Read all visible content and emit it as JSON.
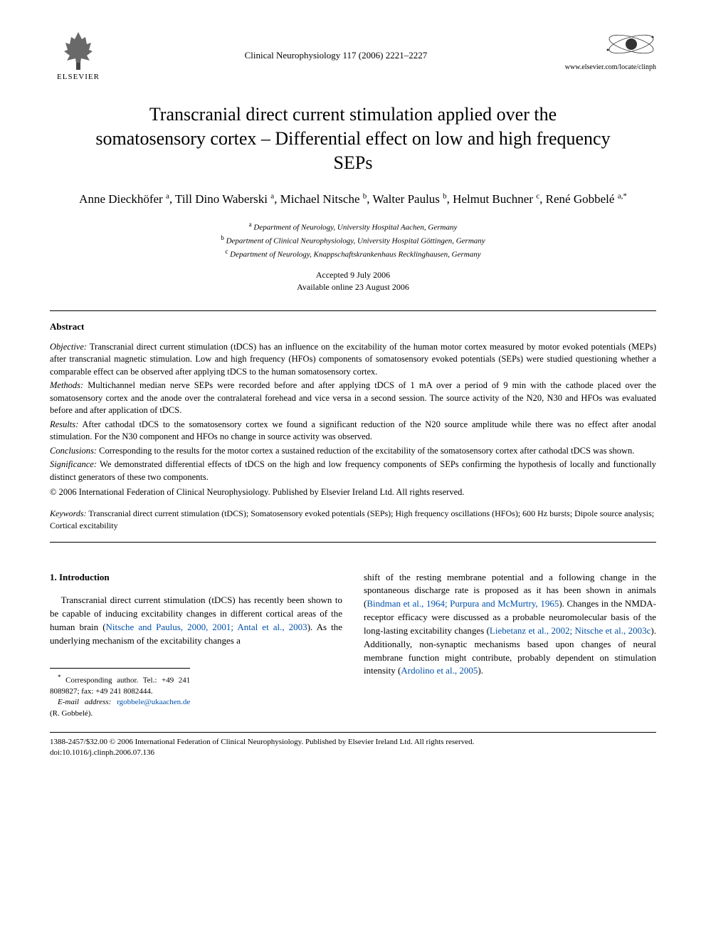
{
  "header": {
    "publisher_name": "ELSEVIER",
    "journal_citation": "Clinical Neurophysiology 117 (2006) 2221–2227",
    "site_url": "www.elsevier.com/locate/clinph"
  },
  "article": {
    "title": "Transcranial direct current stimulation applied over the somatosensory cortex – Differential effect on low and high frequency SEPs",
    "authors_html": "Anne Dieckhöfer <sup>a</sup>, Till Dino Waberski <sup>a</sup>, Michael Nitsche <sup>b</sup>, Walter Paulus <sup>b</sup>, Helmut Buchner <sup>c</sup>, René Gobbelé <sup>a,*</sup>",
    "affiliations": {
      "a": "Department of Neurology, University Hospital Aachen, Germany",
      "b": "Department of Clinical Neurophysiology, University Hospital Göttingen, Germany",
      "c": "Department of Neurology, Knappschaftskrankenhaus Recklinghausen, Germany"
    },
    "accepted": "Accepted 9 July 2006",
    "online": "Available online 23 August 2006"
  },
  "abstract": {
    "heading": "Abstract",
    "objective_label": "Objective:",
    "objective": "Transcranial direct current stimulation (tDCS) has an influence on the excitability of the human motor cortex measured by motor evoked potentials (MEPs) after transcranial magnetic stimulation. Low and high frequency (HFOs) components of somatosensory evoked potentials (SEPs) were studied questioning whether a comparable effect can be observed after applying tDCS to the human somatosensory cortex.",
    "methods_label": "Methods:",
    "methods": "Multichannel median nerve SEPs were recorded before and after applying tDCS of 1 mA over a period of 9 min with the cathode placed over the somatosensory cortex and the anode over the contralateral forehead and vice versa in a second session. The source activity of the N20, N30 and HFOs was evaluated before and after application of tDCS.",
    "results_label": "Results:",
    "results": "After cathodal tDCS to the somatosensory cortex we found a significant reduction of the N20 source amplitude while there was no effect after anodal stimulation. For the N30 component and HFOs no change in source activity was observed.",
    "conclusions_label": "Conclusions:",
    "conclusions": "Corresponding to the results for the motor cortex a sustained reduction of the excitability of the somatosensory cortex after cathodal tDCS was shown.",
    "significance_label": "Significance:",
    "significance": "We demonstrated differential effects of tDCS on the high and low frequency components of SEPs confirming the hypothesis of locally and functionally distinct generators of these two components.",
    "copyright": "© 2006 International Federation of Clinical Neurophysiology. Published by Elsevier Ireland Ltd. All rights reserved."
  },
  "keywords": {
    "label": "Keywords:",
    "text": "Transcranial direct current stimulation (tDCS); Somatosensory evoked potentials (SEPs); High frequency oscillations (HFOs); 600 Hz bursts; Dipole source analysis; Cortical excitability"
  },
  "introduction": {
    "heading": "1. Introduction",
    "col1_pre": "Transcranial direct current stimulation (tDCS) has recently been shown to be capable of inducing excitability changes in different cortical areas of the human brain (",
    "col1_ref": "Nitsche and Paulus, 2000, 2001; Antal et al., 2003",
    "col1_post": "). As the underlying mechanism of the excitability changes a",
    "col2_p1_pre": "shift of the resting membrane potential and a following change in the spontaneous discharge rate is proposed as it has been shown in animals (",
    "col2_p1_ref": "Bindman et al., 1964; Purpura and McMurtry, 1965",
    "col2_p1_mid": "). Changes in the NMDA-receptor efficacy were discussed as a probable neuromolecular basis of the long-lasting excitability changes (",
    "col2_p1_ref2": "Liebetanz et al., 2002; Nitsche et al., 2003c",
    "col2_p1_mid2": "). Additionally, non-synaptic mechanisms based upon changes of neural membrane function might contribute, probably dependent on stimulation intensity (",
    "col2_p1_ref3": "Ardolino et al., 2005",
    "col2_p1_end": ")."
  },
  "correspondence": {
    "line1": "Corresponding author. Tel.: +49 241 8089827; fax: +49 241 8082444.",
    "email_label": "E-mail address:",
    "email": "rgobbele@ukaachen.de",
    "email_person": "(R. Gobbelé)."
  },
  "footer": {
    "copyright_line": "1388-2457/$32.00 © 2006 International Federation of Clinical Neurophysiology. Published by Elsevier Ireland Ltd. All rights reserved.",
    "doi": "doi:10.1016/j.clinph.2006.07.136"
  },
  "colors": {
    "text": "#000000",
    "link": "#0050aa",
    "background": "#ffffff",
    "rule": "#000000"
  }
}
